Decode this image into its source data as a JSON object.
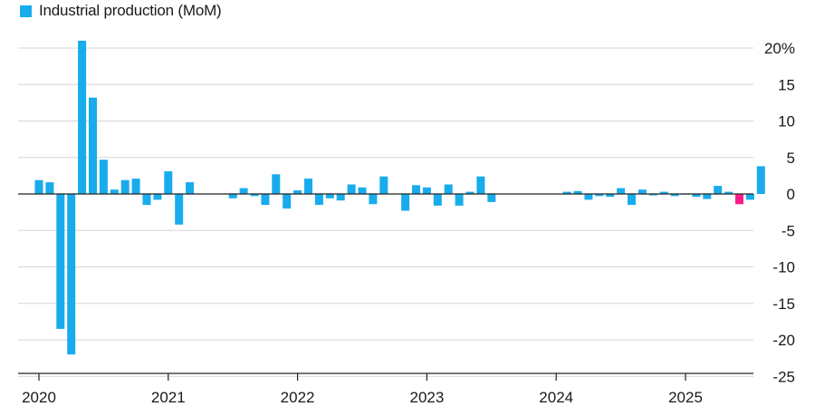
{
  "chart_data": {
    "type": "bar",
    "legend": [
      {
        "label": "Industrial production (MoM)",
        "color": "#18acec"
      }
    ],
    "start_month": "2020-01",
    "x_tick_labels": [
      "2020",
      "2021",
      "2022",
      "2023",
      "2024",
      "2025"
    ],
    "y_tick_labels": [
      "20%",
      "15",
      "10",
      "5",
      "0",
      "-5",
      "-10",
      "-15",
      "-20",
      "-25"
    ],
    "ylim": [
      -25,
      22
    ],
    "grid": true,
    "colors": {
      "bar": "#18acec",
      "highlight": "#ff1a8c",
      "grid": "#d6d6d6",
      "axis": "#222222"
    },
    "highlight_index": 65,
    "values": [
      1.9,
      1.6,
      -18.5,
      -22.0,
      21.0,
      13.2,
      4.7,
      0.6,
      1.9,
      2.1,
      -1.5,
      -0.8,
      3.1,
      -4.2,
      1.6,
      0.0,
      0.0,
      0.0,
      -0.6,
      0.8,
      -0.3,
      -1.5,
      2.7,
      -2.0,
      0.5,
      2.1,
      -1.5,
      -0.6,
      -0.9,
      1.3,
      0.9,
      -1.4,
      2.4,
      0.0,
      -2.3,
      1.2,
      0.9,
      -1.6,
      1.3,
      -1.6,
      0.3,
      2.4,
      -1.1,
      0.0,
      0.0,
      0.0,
      0.0,
      0.0,
      0.0,
      0.3,
      0.4,
      -0.8,
      -0.3,
      -0.4,
      0.8,
      -1.5,
      0.6,
      -0.2,
      0.3,
      -0.3,
      -0.1,
      -0.4,
      -0.7,
      1.1,
      0.3,
      -1.4,
      -0.8,
      3.8
    ]
  }
}
